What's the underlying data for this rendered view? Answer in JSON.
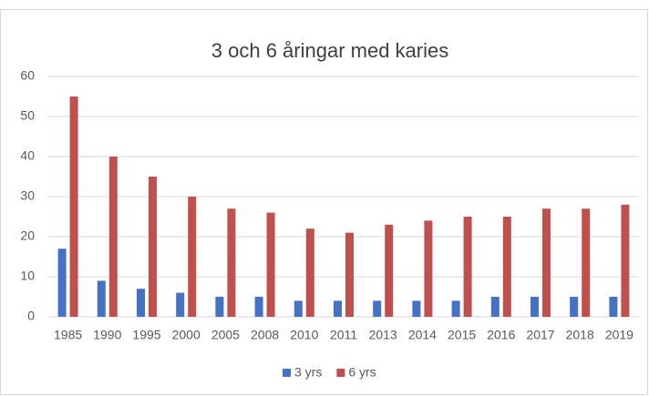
{
  "chart_data": {
    "type": "bar",
    "title": "3 och 6 åringar med karies",
    "categories": [
      "1985",
      "1990",
      "1995",
      "2000",
      "2005",
      "2008",
      "2010",
      "2011",
      "2013",
      "2014",
      "2015",
      "2016",
      "2017",
      "2018",
      "2019"
    ],
    "series": [
      {
        "name": "3 yrs",
        "color": "#4472c4",
        "values": [
          17,
          9,
          7,
          6,
          5,
          5,
          4,
          4,
          4,
          4,
          4,
          5,
          5,
          5,
          5
        ]
      },
      {
        "name": "6 yrs",
        "color": "#c0504d",
        "values": [
          55,
          40,
          35,
          30,
          27,
          26,
          22,
          21,
          23,
          24,
          25,
          25,
          27,
          27,
          28
        ]
      }
    ],
    "ylim": [
      0,
      60
    ],
    "yticks": [
      0,
      10,
      20,
      30,
      40,
      50,
      60
    ],
    "grid": true,
    "legend": "bottom"
  }
}
